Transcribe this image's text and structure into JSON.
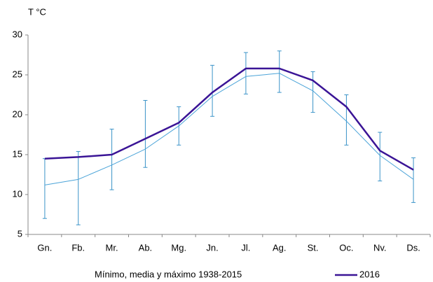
{
  "chart_data": {
    "type": "line",
    "y_label": "T °C",
    "categories": [
      "Gn.",
      "Fb.",
      "Mr.",
      "Ab.",
      "Mg.",
      "Jn.",
      "Jl.",
      "Ag.",
      "St.",
      "Oc.",
      "Nv.",
      "Ds."
    ],
    "ylim": [
      5,
      30
    ],
    "yticks": [
      5,
      10,
      15,
      20,
      25,
      30
    ],
    "grid": false,
    "legend": "bottom",
    "series": [
      {
        "name": "Mínimo, media y máximo 1938-2015",
        "color": "#4aa3d8",
        "values": [
          11.2,
          11.9,
          13.7,
          15.7,
          18.6,
          22.3,
          24.8,
          25.2,
          23.0,
          19.2,
          14.9,
          11.9
        ],
        "min": [
          7.0,
          6.2,
          10.6,
          13.4,
          16.2,
          19.8,
          22.6,
          22.8,
          20.3,
          16.2,
          11.7,
          9.0
        ],
        "max": [
          14.5,
          15.4,
          18.2,
          21.8,
          21.0,
          26.2,
          27.8,
          28.0,
          25.4,
          22.5,
          17.8,
          14.6
        ]
      },
      {
        "name": "2016",
        "color": "#3a1496",
        "values": [
          14.5,
          14.7,
          15.0,
          17.0,
          19.0,
          22.8,
          25.8,
          25.8,
          24.3,
          21.0,
          15.5,
          13.1
        ]
      }
    ]
  }
}
